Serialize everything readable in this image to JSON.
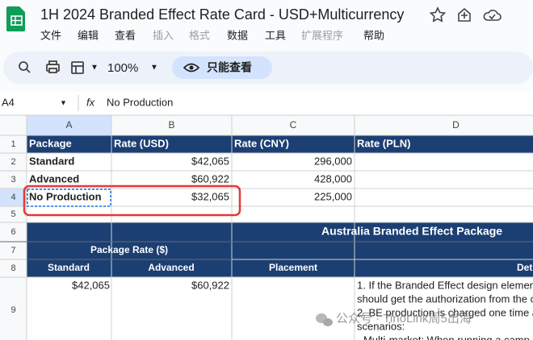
{
  "header": {
    "title": "1H 2024 Branded Effect Rate Card - USD+Multicurrency",
    "menu": [
      "文件",
      "编辑",
      "查看",
      "插入",
      "格式",
      "数据",
      "工具",
      "扩展程序",
      "帮助"
    ]
  },
  "toolbar": {
    "zoom": "100%",
    "view_only": "只能查看"
  },
  "formula_bar": {
    "cell_ref": "A4",
    "fx": "fx",
    "content": "No Production"
  },
  "columns": [
    "A",
    "B",
    "C",
    "D"
  ],
  "row_numbers": [
    "1",
    "2",
    "3",
    "4",
    "5",
    "6",
    "7",
    "8",
    "9"
  ],
  "rate_table": {
    "header": [
      "Package",
      "Rate (USD)",
      "Rate (CNY)",
      "Rate (PLN)"
    ],
    "rows": [
      [
        "Standard",
        "$42,065",
        "296,000"
      ],
      [
        "Advanced",
        "$60,922",
        "428,000"
      ],
      [
        "No Production",
        "$32,065",
        "225,000"
      ]
    ]
  },
  "package_table": {
    "title": "Australia Branded Effect Package",
    "group_header": "Package Rate ($)",
    "sub_headers": [
      "Standard",
      "Advanced"
    ],
    "placement_header": "Placement",
    "details_header": "Det",
    "row": {
      "standard": "$42,065",
      "advanced": "$60,922",
      "details": [
        "1. If the Branded Effect design element",
        "should get the authorization from the c",
        "2. BE production is charged one time a",
        "scenarios:",
        "- Multi-market: When running a camp"
      ]
    }
  },
  "watermark": "公众号 · TinoLink周5出海"
}
